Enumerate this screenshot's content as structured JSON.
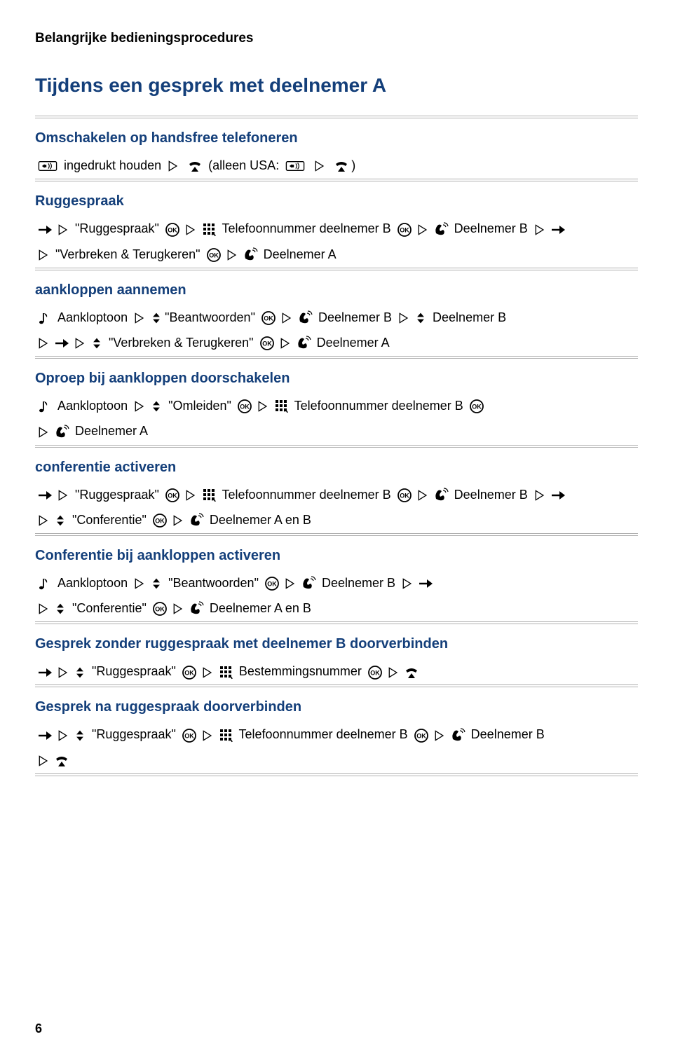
{
  "page_header": "Belangrijke bedieningsprocedures",
  "main_title": "Tijdens een gesprek met deelnemer A",
  "colors": {
    "heading": "#143f7a",
    "text": "#000000",
    "divider": "#b0b0b0",
    "background": "#ffffff"
  },
  "typography": {
    "body_size_pt": 14,
    "main_title_size_pt": 21,
    "section_title_size_pt": 15,
    "header_size_pt": 14,
    "font_family": "Arial/Helvetica sans-serif"
  },
  "sections": [
    {
      "title": "Omschakelen op handsfree telefoneren",
      "lines": [
        [
          {
            "icon": "speaker-box"
          },
          {
            "text": " ingedrukt houden "
          },
          {
            "icon": "triangle-right"
          },
          {
            "text": " "
          },
          {
            "icon": "onhook"
          },
          {
            "text": " (alleen USA: "
          },
          {
            "icon": "speaker-box"
          },
          {
            "text": " "
          },
          {
            "icon": "triangle-right"
          },
          {
            "text": " "
          },
          {
            "icon": "onhook"
          },
          {
            "text": ")"
          }
        ]
      ]
    },
    {
      "title": "Ruggespraak",
      "lines": [
        [
          {
            "icon": "arrow-right"
          },
          {
            "icon": "triangle-right"
          },
          {
            "text": " \"Ruggespraak\" "
          },
          {
            "icon": "ok"
          },
          {
            "icon": "triangle-right"
          },
          {
            "icon": "keypad"
          },
          {
            "text": " Telefoonnummer deelnemer B "
          },
          {
            "icon": "ok"
          },
          {
            "icon": "triangle-right"
          },
          {
            "icon": "offhook"
          },
          {
            "text": " Deelnemer B "
          },
          {
            "icon": "triangle-right"
          },
          {
            "icon": "arrow-right"
          }
        ],
        [
          {
            "icon": "triangle-right"
          },
          {
            "text": " \"Verbreken & Terugkeren\" "
          },
          {
            "icon": "ok"
          },
          {
            "icon": "triangle-right"
          },
          {
            "icon": "offhook"
          },
          {
            "text": " Deelnemer A"
          }
        ]
      ]
    },
    {
      "title": "aankloppen aannemen",
      "lines": [
        [
          {
            "icon": "note"
          },
          {
            "text": " Aankloptoon "
          },
          {
            "icon": "triangle-right"
          },
          {
            "icon": "updown"
          },
          {
            "text": "\"Beantwoorden\" "
          },
          {
            "icon": "ok"
          },
          {
            "icon": "triangle-right"
          },
          {
            "icon": "offhook"
          },
          {
            "text": " Deelnemer B "
          },
          {
            "icon": "triangle-right"
          },
          {
            "icon": "updown"
          },
          {
            "text": " Deelnemer B"
          }
        ],
        [
          {
            "icon": "triangle-right"
          },
          {
            "icon": "arrow-right"
          },
          {
            "icon": "triangle-right"
          },
          {
            "icon": "updown"
          },
          {
            "text": " \"Verbreken & Terugkeren\" "
          },
          {
            "icon": "ok"
          },
          {
            "icon": "triangle-right"
          },
          {
            "icon": "offhook"
          },
          {
            "text": " Deelnemer A"
          }
        ]
      ]
    },
    {
      "title": "Oproep bij aankloppen doorschakelen",
      "lines": [
        [
          {
            "icon": "note"
          },
          {
            "text": " Aankloptoon "
          },
          {
            "icon": "triangle-right"
          },
          {
            "icon": "updown"
          },
          {
            "text": " \"Omleiden\" "
          },
          {
            "icon": "ok"
          },
          {
            "icon": "triangle-right"
          },
          {
            "icon": "keypad"
          },
          {
            "text": " Telefoonnummer deelnemer B "
          },
          {
            "icon": "ok"
          }
        ],
        [
          {
            "icon": "triangle-right"
          },
          {
            "icon": "offhook"
          },
          {
            "text": " Deelnemer A"
          }
        ]
      ]
    },
    {
      "title": "conferentie activeren",
      "lines": [
        [
          {
            "icon": "arrow-right"
          },
          {
            "icon": "triangle-right"
          },
          {
            "text": " \"Ruggespraak\" "
          },
          {
            "icon": "ok"
          },
          {
            "icon": "triangle-right"
          },
          {
            "icon": "keypad"
          },
          {
            "text": " Telefoonnummer deelnemer B "
          },
          {
            "icon": "ok"
          },
          {
            "icon": "triangle-right"
          },
          {
            "icon": "offhook"
          },
          {
            "text": " Deelnemer B "
          },
          {
            "icon": "triangle-right"
          },
          {
            "icon": "arrow-right"
          }
        ],
        [
          {
            "icon": "triangle-right"
          },
          {
            "icon": "updown"
          },
          {
            "text": " \"Conferentie\" "
          },
          {
            "icon": "ok"
          },
          {
            "icon": "triangle-right"
          },
          {
            "icon": "offhook"
          },
          {
            "text": " Deelnemer A en B"
          }
        ]
      ]
    },
    {
      "title": "Conferentie bij aankloppen activeren",
      "lines": [
        [
          {
            "icon": "note"
          },
          {
            "text": " Aankloptoon "
          },
          {
            "icon": "triangle-right"
          },
          {
            "icon": "updown"
          },
          {
            "text": " \"Beantwoorden\" "
          },
          {
            "icon": "ok"
          },
          {
            "icon": "triangle-right"
          },
          {
            "icon": "offhook"
          },
          {
            "text": " Deelnemer B "
          },
          {
            "icon": "triangle-right"
          },
          {
            "icon": "arrow-right"
          }
        ],
        [
          {
            "icon": "triangle-right"
          },
          {
            "icon": "updown"
          },
          {
            "text": " \"Conferentie\" "
          },
          {
            "icon": "ok"
          },
          {
            "icon": "triangle-right"
          },
          {
            "icon": "offhook"
          },
          {
            "text": " Deelnemer A en B"
          }
        ]
      ]
    },
    {
      "title": "Gesprek zonder ruggespraak met deelnemer B doorverbinden",
      "lines": [
        [
          {
            "icon": "arrow-right"
          },
          {
            "icon": "triangle-right"
          },
          {
            "icon": "updown"
          },
          {
            "text": " \"Ruggespraak\" "
          },
          {
            "icon": "ok"
          },
          {
            "icon": "triangle-right"
          },
          {
            "icon": "keypad"
          },
          {
            "text": " Bestemmingsnummer "
          },
          {
            "icon": "ok"
          },
          {
            "icon": "triangle-right"
          },
          {
            "icon": "onhook"
          }
        ]
      ]
    },
    {
      "title": "Gesprek na ruggespraak doorverbinden",
      "lines": [
        [
          {
            "icon": "arrow-right"
          },
          {
            "icon": "triangle-right"
          },
          {
            "icon": "updown"
          },
          {
            "text": " \"Ruggespraak\" "
          },
          {
            "icon": "ok"
          },
          {
            "icon": "triangle-right"
          },
          {
            "icon": "keypad"
          },
          {
            "text": " Telefoonnummer deelnemer B "
          },
          {
            "icon": "ok"
          },
          {
            "icon": "triangle-right"
          },
          {
            "icon": "offhook"
          },
          {
            "text": " Deelnemer B"
          }
        ],
        [
          {
            "icon": "triangle-right"
          },
          {
            "icon": "onhook"
          }
        ]
      ]
    }
  ],
  "page_number": "6"
}
